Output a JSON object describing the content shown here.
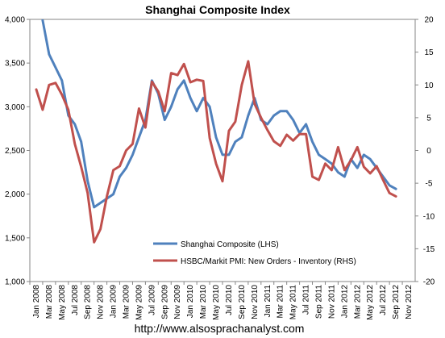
{
  "chart_data": {
    "type": "line",
    "title": "Shanghai Composite Index",
    "x_ticks": [
      "Jan 2008",
      "Mar 2008",
      "May 2008",
      "Jul 2008",
      "Sep 2008",
      "Nov 2008",
      "Jan 2009",
      "Mar 2009",
      "May 2009",
      "Jul 2009",
      "Sep 2009",
      "Nov 2009",
      "Jan 2010",
      "Mar 2010",
      "May 2010",
      "Jul 2010",
      "Sep 2010",
      "Nov 2010",
      "Jan 2011",
      "Mar 2011",
      "May 2011",
      "Jul 2011",
      "Sep 2011",
      "Nov 2011",
      "Jan 2012",
      "Mar 2012",
      "May 2012",
      "Jul 2012",
      "Sep 2012",
      "Nov 2012"
    ],
    "y_left": {
      "min": 1000,
      "max": 4000,
      "ticks": [
        "1,000",
        "1,500",
        "2,000",
        "2,500",
        "3,000",
        "3,500",
        "4,000"
      ],
      "tick_values": [
        1000,
        1500,
        2000,
        2500,
        3000,
        3500,
        4000
      ]
    },
    "y_right": {
      "min": -20,
      "max": 20,
      "ticks": [
        "-20",
        "-15",
        "-10",
        "-5",
        "0",
        "5",
        "10",
        "15",
        "20"
      ],
      "tick_values": [
        -20,
        -15,
        -10,
        -5,
        0,
        5,
        10,
        15,
        20
      ]
    },
    "legend_position": "bottom-center",
    "grid": false,
    "series": [
      {
        "name": "Shanghai Composite (LHS)",
        "axis": "left",
        "color": "#4f81bd",
        "x": [
          "2008-02",
          "2008-03",
          "2008-04",
          "2008-05",
          "2008-06",
          "2008-07",
          "2008-08",
          "2008-09",
          "2008-10",
          "2008-11",
          "2008-12",
          "2009-01",
          "2009-02",
          "2009-03",
          "2009-04",
          "2009-05",
          "2009-06",
          "2009-07",
          "2009-08",
          "2009-09",
          "2009-10",
          "2009-11",
          "2009-12",
          "2010-01",
          "2010-02",
          "2010-03",
          "2010-04",
          "2010-05",
          "2010-06",
          "2010-07",
          "2010-08",
          "2010-09",
          "2010-10",
          "2010-11",
          "2010-12",
          "2011-01",
          "2011-02",
          "2011-03",
          "2011-04",
          "2011-05",
          "2011-06",
          "2011-07",
          "2011-08",
          "2011-09",
          "2011-10",
          "2011-11",
          "2011-12",
          "2012-01",
          "2012-02",
          "2012-03",
          "2012-04",
          "2012-05",
          "2012-06",
          "2012-07",
          "2012-08",
          "2012-09"
        ],
        "values": [
          3990,
          3600,
          3450,
          3300,
          2900,
          2800,
          2600,
          2150,
          1850,
          1900,
          1950,
          2000,
          2200,
          2300,
          2450,
          2650,
          2850,
          3300,
          3150,
          2850,
          3000,
          3200,
          3300,
          3100,
          2950,
          3100,
          3000,
          2650,
          2450,
          2450,
          2600,
          2650,
          2900,
          3100,
          2850,
          2800,
          2900,
          2950,
          2950,
          2850,
          2700,
          2800,
          2600,
          2450,
          2400,
          2350,
          2250,
          2200,
          2400,
          2300,
          2450,
          2400,
          2300,
          2200,
          2100,
          2060
        ]
      },
      {
        "name": "HSBC/Markit PMI: New Orders - Inventory (RHS)",
        "axis": "right",
        "color": "#c0504d",
        "x": [
          "2008-01",
          "2008-02",
          "2008-03",
          "2008-04",
          "2008-05",
          "2008-06",
          "2008-07",
          "2008-08",
          "2008-09",
          "2008-10",
          "2008-11",
          "2008-12",
          "2009-01",
          "2009-02",
          "2009-03",
          "2009-04",
          "2009-05",
          "2009-06",
          "2009-07",
          "2009-08",
          "2009-09",
          "2009-10",
          "2009-11",
          "2009-12",
          "2010-01",
          "2010-02",
          "2010-03",
          "2010-04",
          "2010-05",
          "2010-06",
          "2010-07",
          "2010-08",
          "2010-09",
          "2010-10",
          "2010-11",
          "2010-12",
          "2011-01",
          "2011-02",
          "2011-03",
          "2011-04",
          "2011-05",
          "2011-06",
          "2011-07",
          "2011-08",
          "2011-09",
          "2011-10",
          "2011-11",
          "2011-12",
          "2012-01",
          "2012-02",
          "2012-03",
          "2012-04",
          "2012-05",
          "2012-06",
          "2012-07",
          "2012-08",
          "2012-09"
        ],
        "values": [
          9.3,
          6.2,
          10,
          10.3,
          8.5,
          6.2,
          1,
          -2.5,
          -6.5,
          -14,
          -12,
          -7,
          -3,
          -2.4,
          0,
          1,
          6.4,
          3.5,
          10.5,
          9,
          6,
          11.8,
          11.5,
          13.2,
          10.4,
          10.8,
          10.6,
          1.9,
          -2,
          -4.7,
          3,
          4.4,
          10,
          13.6,
          7.1,
          5,
          3.1,
          1.4,
          0.7,
          2.4,
          1.5,
          2.5,
          2.5,
          -4,
          -4.5,
          -2,
          -3,
          0.5,
          -3,
          -1.5,
          0.5,
          -2.5,
          -3.5,
          -2.4,
          -4.5,
          -6.5,
          -7
        ]
      }
    ],
    "watermark_url": "http://www.alsosprachanalyst.com"
  }
}
